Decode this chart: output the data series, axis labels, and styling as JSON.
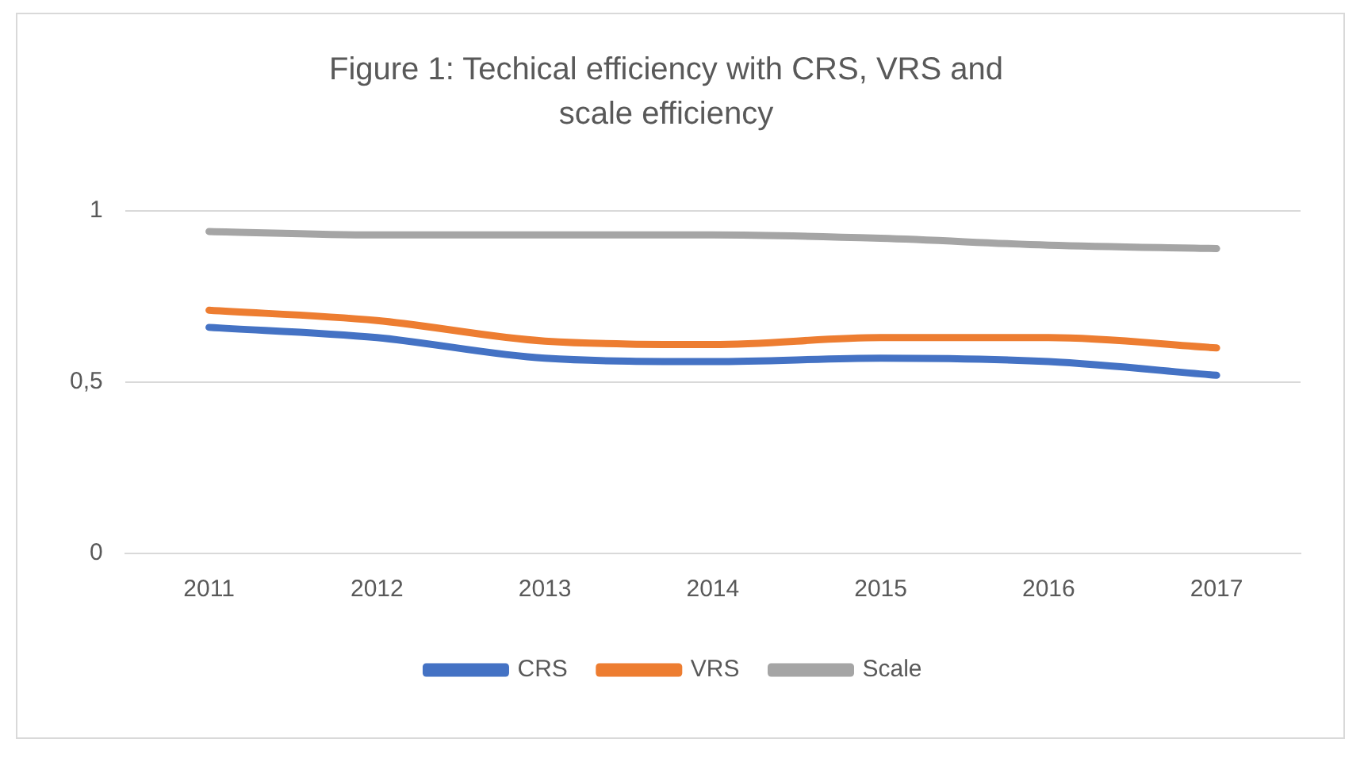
{
  "chart_data": {
    "type": "line",
    "title": "Figure 1: Techical efficiency with CRS, VRS and scale efficiency",
    "categories": [
      "2011",
      "2012",
      "2013",
      "2014",
      "2015",
      "2016",
      "2017"
    ],
    "series": [
      {
        "name": "CRS",
        "color": "#4472c4",
        "values": [
          0.66,
          0.63,
          0.57,
          0.56,
          0.57,
          0.56,
          0.52
        ]
      },
      {
        "name": "VRS",
        "color": "#ed7d31",
        "values": [
          0.71,
          0.68,
          0.62,
          0.61,
          0.63,
          0.63,
          0.6
        ]
      },
      {
        "name": "Scale",
        "color": "#a5a5a5",
        "values": [
          0.94,
          0.93,
          0.93,
          0.93,
          0.92,
          0.9,
          0.89
        ]
      }
    ],
    "ylim": [
      0,
      1
    ],
    "yticks": [
      0,
      {
        "value": 0.5,
        "label": "0,5"
      },
      1
    ],
    "grid": "y",
    "legend": "bottom",
    "marker": "none",
    "line_style": "solid"
  }
}
